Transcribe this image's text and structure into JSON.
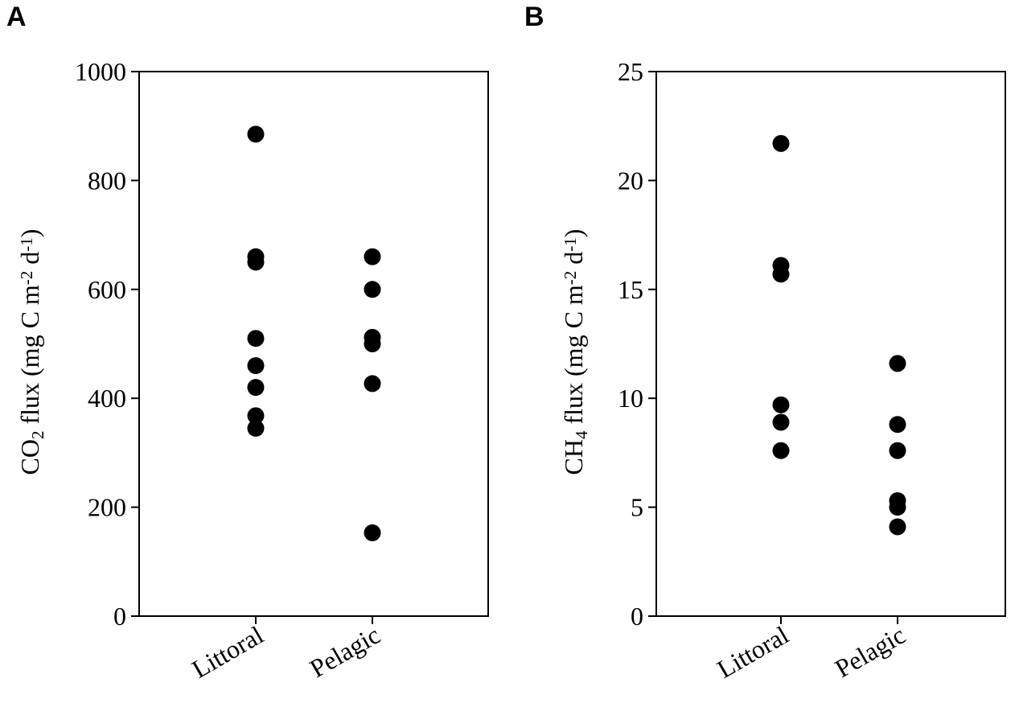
{
  "chart_data": [
    {
      "type": "scatter",
      "panel": "A",
      "categories": [
        "Littoral",
        "Pelagic"
      ],
      "series": [
        {
          "category": "Littoral",
          "values": [
            885,
            660,
            650,
            510,
            460,
            420,
            368,
            345
          ]
        },
        {
          "category": "Pelagic",
          "values": [
            660,
            600,
            512,
            500,
            427,
            153
          ]
        }
      ],
      "ylabel": {
        "pre": "CO",
        "sub": "2",
        "post": " flux (mg C m",
        "sup1": "-2",
        "mid": " d",
        "sup2": "-1",
        "end": ")"
      },
      "ylim": [
        0,
        1000
      ],
      "yticks": [
        0,
        200,
        400,
        600,
        800,
        1000
      ],
      "grid": false
    },
    {
      "type": "scatter",
      "panel": "B",
      "categories": [
        "Littoral",
        "Pelagic"
      ],
      "series": [
        {
          "category": "Littoral",
          "values": [
            21.7,
            16.1,
            15.7,
            9.7,
            8.9,
            7.6
          ]
        },
        {
          "category": "Pelagic",
          "values": [
            11.6,
            8.8,
            7.6,
            5.3,
            5.0,
            4.1
          ]
        }
      ],
      "ylabel": {
        "pre": "CH",
        "sub": "4",
        "post": " flux (mg C m",
        "sup1": "-2",
        "mid": " d",
        "sup2": "-1",
        "end": ")"
      },
      "ylim": [
        0,
        25
      ],
      "yticks": [
        0,
        5,
        10,
        15,
        20,
        25
      ],
      "grid": false
    }
  ]
}
